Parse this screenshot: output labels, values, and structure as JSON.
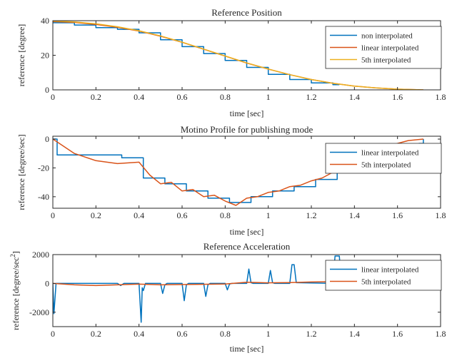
{
  "chart_data": [
    {
      "type": "line",
      "title": "Reference Position",
      "xlabel": "time [sec]",
      "ylabel": "reference [degree]",
      "xlim": [
        0,
        1.8
      ],
      "ylim": [
        0,
        40
      ],
      "xticks": [
        0,
        0.2,
        0.4,
        0.6,
        0.8,
        1,
        1.2,
        1.4,
        1.6,
        1.8
      ],
      "yticks": [
        0,
        20,
        40
      ],
      "xtick_labels": [
        "0",
        "0.2",
        "0.4",
        "0.6",
        "0.8",
        "1",
        "1.2",
        "1.4",
        "1.6",
        "1.8"
      ],
      "ytick_labels": [
        "0",
        "20",
        "40"
      ],
      "grid": false,
      "legend": "top-right",
      "series": [
        {
          "name": "non interpolated",
          "color": "#0072BD",
          "step": true,
          "x": [
            0,
            0.1,
            0.2,
            0.3,
            0.4,
            0.5,
            0.6,
            0.7,
            0.8,
            0.9,
            1.0,
            1.1,
            1.2,
            1.3,
            1.33
          ],
          "y": [
            38.8,
            37.5,
            36,
            35,
            33,
            29,
            25,
            21,
            17,
            13,
            9,
            6,
            4,
            3,
            3
          ]
        },
        {
          "name": "linear interpolated",
          "color": "#D95319",
          "x": [
            0,
            0.1,
            0.2,
            0.3,
            0.4,
            0.5,
            0.6,
            0.7,
            0.8,
            0.9,
            1.0,
            1.1,
            1.2,
            1.3,
            1.4,
            1.5,
            1.6,
            1.72
          ],
          "y": [
            39.5,
            39,
            37.8,
            36.2,
            34,
            31,
            27.5,
            23.5,
            19.5,
            15.5,
            12,
            8.8,
            6,
            3.8,
            2.2,
            1.1,
            0.4,
            0
          ]
        },
        {
          "name": "5th interpolated",
          "color": "#EDB120",
          "x": [
            0,
            0.1,
            0.2,
            0.3,
            0.4,
            0.5,
            0.6,
            0.7,
            0.8,
            0.9,
            1.0,
            1.1,
            1.2,
            1.3,
            1.4,
            1.5,
            1.6,
            1.72
          ],
          "y": [
            39.8,
            39.3,
            38.2,
            36.5,
            34.2,
            31.2,
            27.6,
            23.6,
            19.6,
            15.6,
            12,
            8.8,
            6,
            3.8,
            2.2,
            1.1,
            0.4,
            0
          ]
        }
      ]
    },
    {
      "type": "line",
      "title": "Motino Profile for publishing mode",
      "xlabel": "time [sec]",
      "ylabel": "reference [degree/sec]",
      "xlim": [
        0,
        1.8
      ],
      "ylim": [
        -48,
        2
      ],
      "xticks": [
        0,
        0.2,
        0.4,
        0.6,
        0.8,
        1,
        1.2,
        1.4,
        1.6,
        1.8
      ],
      "yticks": [
        -40,
        -20,
        0
      ],
      "xtick_labels": [
        "0",
        "0.2",
        "0.4",
        "0.6",
        "0.8",
        "1",
        "1.2",
        "1.4",
        "1.6",
        "1.8"
      ],
      "ytick_labels": [
        "-40",
        "-20",
        "0"
      ],
      "grid": false,
      "legend": "top-right",
      "series": [
        {
          "name": "linear interpolated",
          "color": "#0072BD",
          "step": true,
          "x": [
            0,
            0.02,
            0.32,
            0.42,
            0.52,
            0.62,
            0.72,
            0.82,
            0.92,
            1.02,
            1.12,
            1.22,
            1.32,
            1.42,
            1.52,
            1.62,
            1.7,
            1.72
          ],
          "y": [
            0,
            -11,
            -13,
            -27,
            -31,
            -36,
            -41,
            -44,
            -40,
            -36,
            -33,
            -28,
            -21,
            -18,
            -14,
            -9,
            -3,
            0
          ]
        },
        {
          "name": "5th interpolated",
          "color": "#D95319",
          "x": [
            0,
            0.05,
            0.1,
            0.2,
            0.3,
            0.4,
            0.45,
            0.5,
            0.55,
            0.6,
            0.65,
            0.7,
            0.75,
            0.8,
            0.85,
            0.9,
            0.95,
            1.0,
            1.05,
            1.1,
            1.15,
            1.2,
            1.25,
            1.3,
            1.35,
            1.4,
            1.5,
            1.6,
            1.65,
            1.72
          ],
          "y": [
            0,
            -5,
            -10,
            -15,
            -17,
            -16,
            -25,
            -31,
            -30,
            -36,
            -35,
            -40,
            -39,
            -43,
            -46,
            -41,
            -40,
            -37,
            -36,
            -33,
            -32,
            -29,
            -27,
            -23,
            -19,
            -14,
            -8,
            -3,
            -1,
            0
          ]
        }
      ]
    },
    {
      "type": "line",
      "title": "Reference Acceleration",
      "xlabel": "time [sec]",
      "ylabel": "reference [degree/sec",
      "ylabel_superscript": "2",
      "ylabel_suffix": "]",
      "xlim": [
        0,
        1.8
      ],
      "ylim": [
        -3000,
        2000
      ],
      "xticks": [
        0,
        0.2,
        0.4,
        0.6,
        0.8,
        1,
        1.2,
        1.4,
        1.6,
        1.8
      ],
      "yticks": [
        -2000,
        0,
        2000
      ],
      "xtick_labels": [
        "0",
        "0.2",
        "0.4",
        "0.6",
        "0.8",
        "1",
        "1.2",
        "1.4",
        "1.6",
        "1.8"
      ],
      "ytick_labels": [
        "-2000",
        "0",
        "2000"
      ],
      "grid": false,
      "legend": "top-right",
      "series": [
        {
          "name": "linear interpolated",
          "color": "#0072BD",
          "x": [
            0,
            0.005,
            0.015,
            0.2,
            0.3,
            0.315,
            0.33,
            0.4,
            0.41,
            0.415,
            0.42,
            0.43,
            0.5,
            0.51,
            0.52,
            0.53,
            0.6,
            0.61,
            0.62,
            0.63,
            0.7,
            0.71,
            0.72,
            0.73,
            0.8,
            0.81,
            0.82,
            0.83,
            0.9,
            0.91,
            0.92,
            0.93,
            1.0,
            1.01,
            1.02,
            1.03,
            1.1,
            1.11,
            1.12,
            1.13,
            1.3,
            1.31,
            1.32,
            1.33,
            1.34,
            1.8
          ],
          "y": [
            0,
            -2100,
            0,
            0,
            0,
            -150,
            0,
            0,
            -2700,
            -300,
            -500,
            0,
            0,
            -700,
            -100,
            0,
            0,
            -1200,
            -100,
            0,
            0,
            -900,
            -100,
            0,
            0,
            -450,
            -50,
            0,
            0,
            1000,
            50,
            0,
            0,
            900,
            50,
            0,
            0,
            1300,
            1300,
            50,
            0,
            1900,
            1900,
            1900,
            0,
            0
          ]
        },
        {
          "name": "5th interpolated",
          "color": "#D95319",
          "x": [
            0,
            0.1,
            0.2,
            0.3,
            0.4,
            0.5,
            0.6,
            0.7,
            0.8,
            0.9,
            1.0,
            1.1,
            1.2,
            1.3,
            1.4,
            1.5,
            1.6,
            1.7
          ],
          "y": [
            0,
            -100,
            -150,
            -100,
            -50,
            -100,
            -80,
            -60,
            -40,
            80,
            40,
            60,
            100,
            120,
            50,
            0,
            -30,
            0
          ]
        }
      ]
    }
  ]
}
